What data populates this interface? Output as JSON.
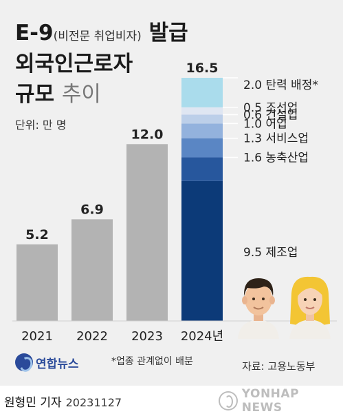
{
  "title": {
    "line1_main": "E-9",
    "line1_paren": "(비전문 취업비자)",
    "line1_end": "발급",
    "line2": "외국인근로자",
    "line3_bold": "규모",
    "line3_light": "추이"
  },
  "unit_label": "단위: 만 명",
  "footnote": "*업종 관계없이 배분",
  "source": "자료: 고용노동부",
  "logo_text": "연합뉴스",
  "byline": "원형민 기자",
  "date": "20231127",
  "watermark": "YONHAP NEWS",
  "colors": {
    "bar_gray": "#b3b3b3",
    "seg_manufacturing": "#0c3a78",
    "seg_agri": "#27579d",
    "seg_service": "#5a86c4",
    "seg_fishery": "#93b2dd",
    "seg_construction": "#bccfe9",
    "seg_shipbuilding": "#dfe6f2",
    "seg_flex": "#aadcec"
  },
  "chart_data": {
    "type": "bar",
    "categories": [
      "2021",
      "2022",
      "2023",
      "2024년"
    ],
    "values": [
      5.2,
      6.9,
      12.0,
      16.5
    ],
    "value_labels": [
      "5.2",
      "6.9",
      "12.0",
      "16.5"
    ],
    "ylim": [
      0,
      16.5
    ],
    "stacked_2024": [
      {
        "name": "제조업",
        "value": 9.5,
        "label": "9.5",
        "color_key": "seg_manufacturing"
      },
      {
        "name": "농축산업",
        "value": 1.6,
        "label": "1.6",
        "color_key": "seg_agri"
      },
      {
        "name": "서비스업",
        "value": 1.3,
        "label": "1.3",
        "color_key": "seg_service"
      },
      {
        "name": "어업",
        "value": 1.0,
        "label": "1.0",
        "color_key": "seg_fishery"
      },
      {
        "name": "건설업",
        "value": 0.6,
        "label": "0.6",
        "color_key": "seg_construction"
      },
      {
        "name": "조선업",
        "value": 0.5,
        "label": "0.5",
        "color_key": "seg_shipbuilding"
      },
      {
        "name": "탄력 배정*",
        "value": 2.0,
        "label": "2.0",
        "color_key": "seg_flex"
      }
    ]
  }
}
